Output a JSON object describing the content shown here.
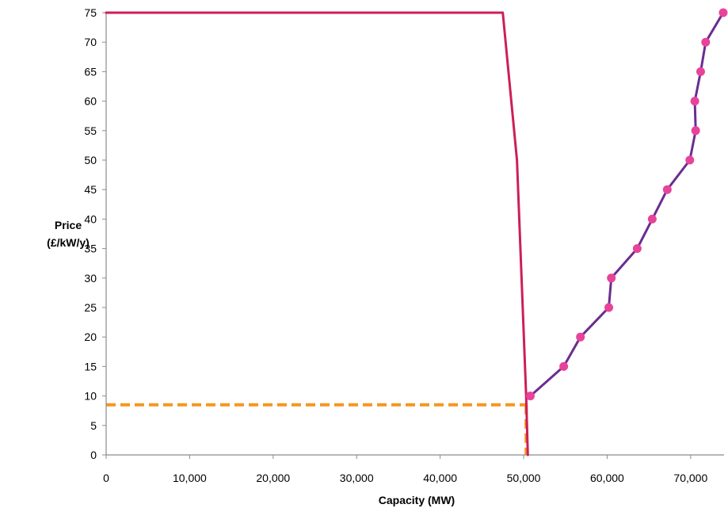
{
  "chart_data": {
    "type": "line",
    "title": "",
    "xlabel": "Capacity (MW)",
    "ylabel_lines": [
      "Price",
      "(£/kW/y)"
    ],
    "xlim": [
      0,
      74000
    ],
    "ylim": [
      0,
      75
    ],
    "x_ticks": [
      0,
      10000,
      20000,
      30000,
      40000,
      50000,
      60000,
      70000
    ],
    "x_tick_labels": [
      "0",
      "10,000",
      "20,000",
      "30,000",
      "40,000",
      "50,000",
      "60,000",
      "70,000"
    ],
    "y_ticks": [
      0,
      5,
      10,
      15,
      20,
      25,
      30,
      35,
      40,
      45,
      50,
      55,
      60,
      65,
      70,
      75
    ],
    "y_tick_labels": [
      "0",
      "5",
      "10",
      "15",
      "20",
      "25",
      "30",
      "35",
      "40",
      "45",
      "50",
      "55",
      "60",
      "65",
      "70",
      "75"
    ],
    "grid": false,
    "legend": "none",
    "series": [
      {
        "role": "demand-curve",
        "color": "#cc1f55",
        "markers": false,
        "points": [
          {
            "x": 0,
            "y": 75
          },
          {
            "x": 47500,
            "y": 75
          },
          {
            "x": 49200,
            "y": 50
          },
          {
            "x": 50300,
            "y": 10
          },
          {
            "x": 50500,
            "y": 0
          }
        ]
      },
      {
        "role": "supply-curve",
        "color": "#6a2d90",
        "marker_color": "#e8439a",
        "markers": true,
        "points": [
          {
            "x": 50800,
            "y": 10
          },
          {
            "x": 54800,
            "y": 15
          },
          {
            "x": 56800,
            "y": 20
          },
          {
            "x": 60200,
            "y": 25
          },
          {
            "x": 60500,
            "y": 30
          },
          {
            "x": 63600,
            "y": 35
          },
          {
            "x": 65400,
            "y": 40
          },
          {
            "x": 67200,
            "y": 45
          },
          {
            "x": 69900,
            "y": 50
          },
          {
            "x": 70600,
            "y": 55
          },
          {
            "x": 70500,
            "y": 60
          },
          {
            "x": 71200,
            "y": 65
          },
          {
            "x": 71800,
            "y": 70
          },
          {
            "x": 73900,
            "y": 75
          }
        ]
      }
    ],
    "clearing_point": {
      "x": 50300,
      "y": 8.5,
      "color": "#f5961f",
      "style": "dashed"
    }
  }
}
